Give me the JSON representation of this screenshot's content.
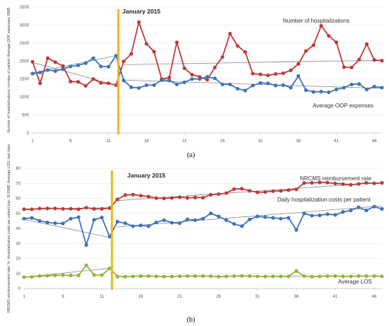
{
  "chart_data": [
    {
      "type": "line",
      "panel_caption": "(a)",
      "ylabel": "Number of hospitalizations; number of patient; Average OOP expenses: RMB",
      "ylim": [
        0,
        3500
      ],
      "yticks": [
        0,
        500,
        1000,
        1500,
        2000,
        2500,
        3000,
        3500
      ],
      "xticks": [
        1,
        6,
        11,
        16,
        21,
        26,
        31,
        36,
        41,
        46
      ],
      "xlim": [
        1,
        47
      ],
      "grid": true,
      "intervention": {
        "x": 12.3,
        "label": "January 2015",
        "color": "#f2b51c"
      },
      "annotations": [
        "Number of hospitalizations",
        "Average OOP expenses"
      ],
      "series": [
        {
          "name": "Number of hospitalizations",
          "color": "#c0393b",
          "x": [
            1,
            2,
            3,
            4,
            5,
            6,
            7,
            8,
            9,
            10,
            11,
            12,
            13,
            14,
            15,
            16,
            17,
            18,
            19,
            20,
            21,
            22,
            23,
            24,
            25,
            26,
            27,
            28,
            29,
            30,
            31,
            32,
            33,
            34,
            35,
            36,
            37,
            38,
            39,
            40,
            41,
            42,
            43,
            44,
            45,
            46,
            47
          ],
          "values": [
            1980,
            1380,
            2080,
            1970,
            1860,
            1430,
            1420,
            1310,
            1500,
            1390,
            1380,
            1330,
            1990,
            2200,
            3080,
            2480,
            2260,
            1500,
            1540,
            2520,
            1800,
            1620,
            1560,
            1480,
            1820,
            2110,
            2760,
            2420,
            2250,
            1650,
            1630,
            1600,
            1640,
            1660,
            1740,
            1920,
            2280,
            2440,
            2980,
            2700,
            2520,
            1830,
            1820,
            2040,
            2470,
            2030,
            2010
          ]
        },
        {
          "name": "Average OOP expenses",
          "color": "#3d74b8",
          "x": [
            1,
            2,
            3,
            4,
            5,
            6,
            7,
            8,
            9,
            10,
            11,
            12,
            13,
            14,
            15,
            16,
            17,
            18,
            19,
            20,
            21,
            22,
            23,
            24,
            25,
            26,
            27,
            28,
            29,
            30,
            31,
            32,
            33,
            34,
            35,
            36,
            37,
            38,
            39,
            40,
            41,
            42,
            43,
            44,
            45,
            46,
            47
          ],
          "values": [
            1650,
            1680,
            1750,
            1720,
            1780,
            1850,
            1880,
            1940,
            2080,
            1850,
            1840,
            2150,
            1460,
            1270,
            1250,
            1330,
            1330,
            1470,
            1460,
            1350,
            1410,
            1500,
            1500,
            1560,
            1520,
            1350,
            1350,
            1230,
            1180,
            1320,
            1390,
            1380,
            1320,
            1330,
            1260,
            1580,
            1190,
            1140,
            1150,
            1130,
            1210,
            1260,
            1350,
            1360,
            1210,
            1290,
            1260
          ]
        }
      ],
      "trend_lines": [
        {
          "series": "Number of hospitalizations",
          "segments": [
            [
              [
                1,
                1960
              ],
              [
                12,
                1330
              ]
            ],
            [
              [
                13,
                1900
              ],
              [
                47,
                2020
              ]
            ]
          ]
        },
        {
          "series": "Average OOP expenses",
          "segments": [
            [
              [
                1,
                1670
              ],
              [
                12,
                2150
              ]
            ],
            [
              [
                13,
                1470
              ],
              [
                47,
                1240
              ]
            ]
          ]
        }
      ]
    },
    {
      "type": "line",
      "panel_caption": "(b)",
      "ylabel": "NRCMS reimbursement rate: %; Hospitalization costs per patient day: 10 RMB; Average LOS: bed days",
      "ylim": [
        0,
        80
      ],
      "yticks": [
        0,
        10,
        20,
        30,
        40,
        50,
        60,
        70,
        80
      ],
      "xticks": [
        1,
        6,
        11,
        16,
        21,
        26,
        31,
        36,
        41,
        46
      ],
      "xlim": [
        1,
        47
      ],
      "grid": true,
      "intervention": {
        "x": 12.3,
        "label": "January 2015",
        "color": "#f2b51c"
      },
      "annotations": [
        "NRCMS reimbursement rate",
        "Daily hospitalization costs per patient",
        "Average LOS"
      ],
      "series": [
        {
          "name": "NRCMS reimbursement rate",
          "color": "#c0393b",
          "x": [
            1,
            2,
            3,
            4,
            5,
            6,
            7,
            8,
            9,
            10,
            11,
            12,
            13,
            14,
            15,
            16,
            17,
            18,
            19,
            20,
            21,
            22,
            23,
            24,
            25,
            26,
            27,
            28,
            29,
            30,
            31,
            32,
            33,
            34,
            35,
            36,
            37,
            38,
            39,
            40,
            41,
            42,
            43,
            44,
            45,
            46,
            47
          ],
          "values": [
            52.8,
            52.7,
            53.2,
            53.3,
            53.3,
            53.0,
            53.1,
            52.8,
            53.8,
            53.0,
            53.0,
            53.5,
            59.3,
            62.2,
            62.5,
            61.8,
            61.2,
            60.2,
            60.0,
            60.3,
            60.8,
            60.3,
            60.6,
            60.4,
            62.4,
            62.8,
            63.5,
            66.2,
            66.4,
            65.0,
            64.0,
            64.2,
            64.8,
            65.0,
            65.5,
            66.0,
            70.2,
            70.3,
            70.6,
            70.5,
            69.9,
            69.5,
            69.0,
            69.6,
            70.3,
            70.0,
            70.3
          ]
        },
        {
          "name": "Daily hospitalization costs per patient",
          "color": "#3d74b8",
          "x": [
            1,
            2,
            3,
            4,
            5,
            6,
            7,
            8,
            9,
            10,
            11,
            12,
            13,
            14,
            15,
            16,
            17,
            18,
            19,
            20,
            21,
            22,
            23,
            24,
            25,
            26,
            27,
            28,
            29,
            30,
            31,
            32,
            33,
            34,
            35,
            36,
            37,
            38,
            39,
            40,
            41,
            42,
            43,
            44,
            45,
            46,
            47
          ],
          "values": [
            46.5,
            47.0,
            45.0,
            44.0,
            43.5,
            43.3,
            46.5,
            47.5,
            29.0,
            45.7,
            47.3,
            34.5,
            44.5,
            43.5,
            41.5,
            42.0,
            41.5,
            44.0,
            45.5,
            43.8,
            43.5,
            46.0,
            45.5,
            46.5,
            50.0,
            48.0,
            45.5,
            43.0,
            41.5,
            46.0,
            48.0,
            47.5,
            47.0,
            46.5,
            47.0,
            39.0,
            50.0,
            48.5,
            48.7,
            49.5,
            49.0,
            51.0,
            52.0,
            54.0,
            52.0,
            54.5,
            53.0
          ]
        },
        {
          "name": "Average LOS",
          "color": "#8db83c",
          "x": [
            1,
            2,
            3,
            4,
            5,
            6,
            7,
            8,
            9,
            10,
            11,
            12,
            13,
            14,
            15,
            16,
            17,
            18,
            19,
            20,
            21,
            22,
            23,
            24,
            25,
            26,
            27,
            28,
            29,
            30,
            31,
            32,
            33,
            34,
            35,
            36,
            37,
            38,
            39,
            40,
            41,
            42,
            43,
            44,
            45,
            46,
            47
          ],
          "values": [
            7.6,
            7.8,
            8.3,
            8.5,
            8.8,
            8.9,
            8.7,
            8.7,
            15.5,
            9.0,
            8.9,
            13.5,
            8.0,
            7.9,
            8.1,
            8.3,
            8.3,
            8.1,
            7.9,
            8.0,
            8.2,
            8.3,
            8.3,
            8.3,
            8.2,
            7.9,
            8.1,
            8.3,
            8.4,
            8.3,
            8.1,
            8.0,
            8.1,
            8.1,
            8.1,
            11.7,
            8.3,
            7.9,
            8.1,
            8.3,
            8.3,
            8.1,
            8.1,
            8.3,
            8.3,
            8.3,
            8.1
          ]
        }
      ],
      "trend_lines": [
        {
          "series": "NRCMS reimbursement rate",
          "segments": [
            [
              [
                1,
                52.7
              ],
              [
                12,
                53.8
              ]
            ],
            [
              [
                13,
                58.5
              ],
              [
                47,
                70.5
              ]
            ]
          ]
        },
        {
          "series": "Daily hospitalization costs per patient",
          "segments": [
            [
              [
                1,
                46.0
              ],
              [
                12,
                34.0
              ]
            ],
            [
              [
                13,
                41.0
              ],
              [
                47,
                55.0
              ]
            ]
          ]
        },
        {
          "series": "Average LOS",
          "segments": [
            [
              [
                1,
                7.5
              ],
              [
                12,
                13.5
              ]
            ],
            [
              [
                13,
                8.0
              ],
              [
                47,
                8.3
              ]
            ]
          ]
        }
      ]
    }
  ]
}
